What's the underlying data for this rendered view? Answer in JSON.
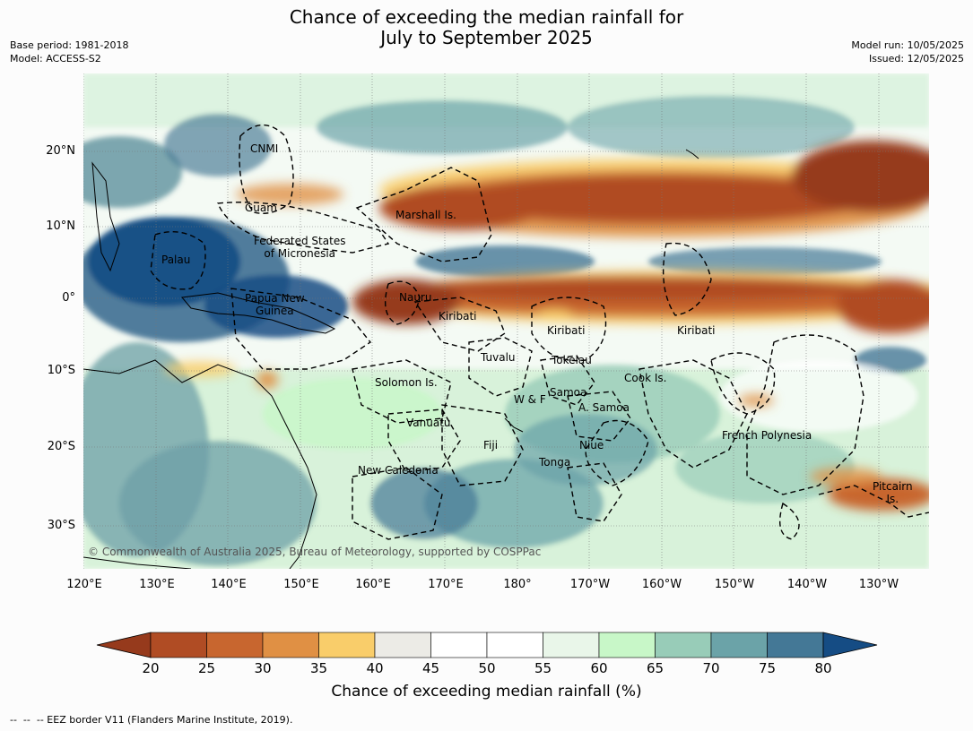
{
  "header": {
    "title_line1": "Chance of exceeding the median rainfall for",
    "title_line2": "July to September 2025",
    "base_period": "Base period: 1981-2018",
    "model": "Model: ACCESS-S2",
    "model_run": "Model run: 10/05/2025",
    "issued": "Issued: 12/05/2025"
  },
  "map": {
    "lat_labels": [
      "20°N",
      "10°N",
      "0°",
      "10°S",
      "20°S",
      "30°S"
    ],
    "lon_labels": [
      "120°E",
      "130°E",
      "140°E",
      "150°E",
      "160°E",
      "170°E",
      "180°",
      "170°W",
      "160°W",
      "150°W",
      "140°W",
      "130°W"
    ],
    "regions": {
      "cnmi": "CNMI",
      "guam": "Guam",
      "marshall": "Marshall Is.",
      "fsm_line1": "Federated States",
      "fsm_line2": "of Micronesia",
      "palau": "Palau",
      "png_line1": "Papua New",
      "png_line2": "Guinea",
      "nauru": "Nauru",
      "kiribati_west": "Kiribati",
      "kiribati_central": "Kiribati",
      "kiribati_east": "Kiribati",
      "tuvalu": "Tuvalu",
      "tokelau": "Tokelau",
      "cook": "Cook Is.",
      "solomon": "Solomon Is.",
      "samoa": "Samoa",
      "wf": "W & F",
      "asamoa": "A. Samoa",
      "vanuatu": "Vanuatu",
      "fiji": "Fiji",
      "niue": "Niue",
      "tonga": "Tonga",
      "frenchpoly": "French Polynesia",
      "newcal": "New Caledonia",
      "pitcairn_line1": "Pitcairn",
      "pitcairn_line2": "Is."
    },
    "copyright": "© Commonwealth of Australia 2025, Bureau of Meteorology, supported by COSPPac"
  },
  "colorbar": {
    "ticks": [
      "20",
      "25",
      "30",
      "35",
      "40",
      "45",
      "50",
      "55",
      "60",
      "65",
      "70",
      "75",
      "80"
    ],
    "colors": [
      "#963a1c",
      "#b04c24",
      "#c8662f",
      "#e09044",
      "#f9cd6a",
      "#ecebe6",
      "#ffffff",
      "#ffffff",
      "#e9f6e9",
      "#c8f7c8",
      "#98ccb8",
      "#6ba3a8",
      "#447896",
      "#154c84"
    ],
    "title": "Chance of exceeding median rainfall (%)"
  },
  "footnote": "--  --  -- EEZ border V11 (Flanders Marine Institute, 2019)."
}
